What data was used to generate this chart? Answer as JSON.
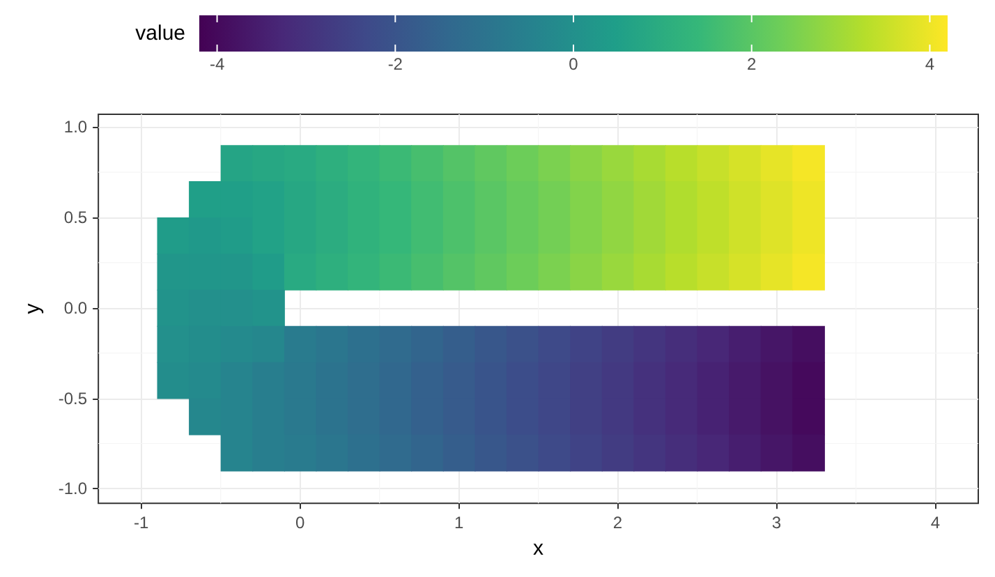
{
  "chart_data": {
    "type": "heatmap",
    "xlabel": "x",
    "ylabel": "y",
    "clabel": "value",
    "x": [
      -0.8,
      -0.6,
      -0.4,
      -0.2,
      0,
      0.2,
      0.4,
      0.6,
      0.8,
      1.0,
      1.2,
      1.4,
      1.6,
      1.8,
      2.0,
      2.2,
      2.4,
      2.6,
      2.8,
      3.0,
      3.2
    ],
    "y": [
      0.8,
      0.6,
      0.4,
      0.2,
      0,
      -0.2,
      -0.4,
      -0.6,
      -0.8
    ],
    "cells": [
      [
        null,
        null,
        0.7,
        0.8,
        0.9,
        1.1,
        1.3,
        1.5,
        1.7,
        1.9,
        2.1,
        2.3,
        2.5,
        2.7,
        2.9,
        3.1,
        3.3,
        3.5,
        3.7,
        3.9,
        4.1
      ],
      [
        null,
        0.5,
        0.5,
        0.6,
        0.8,
        1.0,
        1.2,
        1.4,
        1.6,
        1.8,
        2.0,
        2.2,
        2.4,
        2.6,
        2.8,
        3.0,
        3.2,
        3.4,
        3.6,
        3.8,
        4.0
      ],
      [
        0.4,
        0.3,
        0.4,
        0.6,
        0.8,
        1.0,
        1.2,
        1.4,
        1.6,
        1.8,
        2.0,
        2.2,
        2.4,
        2.6,
        2.8,
        3.0,
        3.2,
        3.4,
        3.6,
        3.8,
        4.0
      ],
      [
        0.2,
        0.2,
        0.2,
        0.4,
        0.9,
        1.1,
        1.3,
        1.5,
        1.7,
        1.9,
        2.1,
        2.3,
        2.5,
        2.7,
        2.9,
        3.1,
        3.3,
        3.5,
        3.7,
        3.9,
        4.1
      ],
      [
        0.1,
        0.0,
        0.0,
        0.1,
        null,
        null,
        null,
        null,
        null,
        null,
        null,
        null,
        null,
        null,
        null,
        null,
        null,
        null,
        null,
        null,
        null
      ],
      [
        0.0,
        -0.1,
        -0.2,
        -0.3,
        -0.7,
        -0.9,
        -1.1,
        -1.3,
        -1.5,
        -1.7,
        -1.9,
        -2.1,
        -2.3,
        -2.5,
        -2.7,
        -2.9,
        -3.1,
        -3.3,
        -3.5,
        -3.7,
        -3.9
      ],
      [
        -0.1,
        -0.2,
        -0.4,
        -0.6,
        -0.8,
        -1.0,
        -1.2,
        -1.4,
        -1.6,
        -1.8,
        -2.0,
        -2.2,
        -2.4,
        -2.6,
        -2.8,
        -3.0,
        -3.2,
        -3.4,
        -3.6,
        -3.8,
        -4.0
      ],
      [
        null,
        -0.3,
        -0.4,
        -0.6,
        -0.8,
        -1.0,
        -1.2,
        -1.4,
        -1.6,
        -1.8,
        -2.0,
        -2.2,
        -2.4,
        -2.6,
        -2.8,
        -3.0,
        -3.2,
        -3.4,
        -3.6,
        -3.8,
        -4.0
      ],
      [
        null,
        null,
        -0.4,
        -0.6,
        -0.7,
        -0.9,
        -1.1,
        -1.3,
        -1.5,
        -1.7,
        -1.9,
        -2.1,
        -2.3,
        -2.5,
        -2.7,
        -2.9,
        -3.1,
        -3.3,
        -3.5,
        -3.7,
        -3.9
      ]
    ],
    "clim": [
      -4.2,
      4.2
    ],
    "cticks": [
      -4,
      -2,
      0,
      2,
      4
    ],
    "xlim": [
      -1.27,
      4.27
    ],
    "xticks": [
      -1,
      0,
      1,
      2,
      3,
      4
    ],
    "ylim": [
      -1.08,
      1.07
    ],
    "yticks": [
      {
        "value": -1,
        "label": "-1.0"
      },
      {
        "value": -0.5,
        "label": "-0.5"
      },
      {
        "value": 0,
        "label": "0.0"
      },
      {
        "value": 0.5,
        "label": "0.5"
      },
      {
        "value": 1,
        "label": "1.0"
      }
    ],
    "grid": true
  }
}
